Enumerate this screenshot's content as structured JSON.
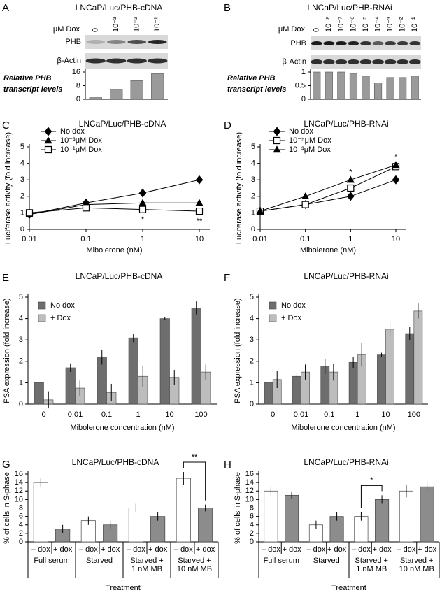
{
  "chart_data": [
    {
      "type": "blotbar",
      "panel": "A",
      "title": "LNCaP/Luc/PHB-cDNA",
      "column_header": "μM Dox",
      "categories": [
        "0",
        "10⁻³",
        "10⁻²",
        "10⁻¹"
      ],
      "blot_rows": [
        "PHB",
        "β-Actin"
      ],
      "ylabel": [
        "Relative PHB",
        "transcript levels"
      ],
      "values": [
        1,
        5.5,
        11,
        15
      ],
      "color": "#9a9a9a",
      "ylim": [
        0,
        16
      ],
      "yticks": [
        0,
        8,
        16
      ]
    },
    {
      "type": "blotbar",
      "panel": "B",
      "title": "LNCaP/Luc/PHB-RNAi",
      "column_header": "μM Dox",
      "categories": [
        "0",
        "10⁻⁸",
        "10⁻⁷",
        "10⁻⁶",
        "10⁻⁵",
        "10⁻⁴",
        "10⁻³",
        "10⁻²",
        "10⁻¹"
      ],
      "blot_rows": [
        "PHB",
        "β-Actin"
      ],
      "ylabel": [
        "Relative PHB",
        "transcript levels"
      ],
      "values": [
        1,
        1,
        1,
        0.95,
        0.85,
        0.6,
        0.8,
        0.8,
        0.85
      ],
      "color": "#9a9a9a",
      "ylim": [
        0,
        1
      ],
      "yticks": [
        0,
        0.5,
        1
      ]
    },
    {
      "type": "line",
      "panel": "C",
      "title": "LNCaP/Luc/PHB-cDNA",
      "xlabel": "Mibolerone (nM)",
      "ylabel": "Luciferase activity (fold increase)",
      "x": [
        0.01,
        0.1,
        1,
        10
      ],
      "xscale": "log",
      "xlim": [
        0.01,
        10
      ],
      "xticks": [
        0.01,
        0.1,
        1,
        10
      ],
      "ylim": [
        0,
        5
      ],
      "yticks": [
        0,
        1,
        2,
        3,
        4,
        5
      ],
      "series": [
        {
          "name": "No dox",
          "marker": "diamond",
          "color": "#000000",
          "fill": "#000000",
          "values": [
            0.9,
            1.6,
            2.2,
            3.0
          ],
          "errors": [
            0.1,
            0.1,
            0.25,
            0.25
          ]
        },
        {
          "name": "10⁻³μM Dox",
          "marker": "triangle",
          "color": "#000000",
          "fill": "#000000",
          "values": [
            0.9,
            1.5,
            1.6,
            1.6
          ],
          "errors": [
            0.1,
            0.1,
            0.15,
            0.1
          ]
        },
        {
          "name": "10⁻¹μM Dox",
          "marker": "square",
          "color": "#000000",
          "fill": "#ffffff",
          "values": [
            1.0,
            1.3,
            1.2,
            1.1
          ],
          "errors": [
            0.1,
            0.15,
            0.1,
            0.1
          ]
        }
      ],
      "annotations": [
        {
          "text": "*",
          "x": 1
        },
        {
          "text": "**",
          "x": 10
        }
      ],
      "annotation_side": "below"
    },
    {
      "type": "line",
      "panel": "D",
      "title": "LNCaP/Luc/PHB-RNAi",
      "xlabel": "Mibolerone (nM)",
      "ylabel": "Luciferase activity (fold increase)",
      "x": [
        0.01,
        0.1,
        1,
        10
      ],
      "xscale": "log",
      "xlim": [
        0.01,
        10
      ],
      "xticks": [
        0.01,
        0.1,
        1,
        10
      ],
      "ylim": [
        0,
        5
      ],
      "yticks": [
        0,
        1,
        2,
        3,
        4,
        5
      ],
      "series": [
        {
          "name": "No dox",
          "marker": "diamond",
          "color": "#000000",
          "fill": "#000000",
          "values": [
            1.1,
            1.5,
            2.0,
            3.0
          ],
          "errors": [
            0.1,
            0.1,
            0.25,
            0.25
          ]
        },
        {
          "name": "10⁻⁵μM Dox",
          "marker": "square",
          "color": "#000000",
          "fill": "#ffffff",
          "values": [
            1.1,
            1.5,
            2.5,
            3.8
          ],
          "errors": [
            0.1,
            0.15,
            0.15,
            0.1
          ]
        },
        {
          "name": "10⁻³μM Dox",
          "marker": "triangle",
          "color": "#000000",
          "fill": "#000000",
          "values": [
            1.1,
            2.0,
            3.0,
            3.9
          ],
          "errors": [
            0.1,
            0.1,
            0.1,
            0.15
          ]
        }
      ],
      "annotations": [
        {
          "text": "*",
          "x": 1
        },
        {
          "text": "*",
          "x": 10
        }
      ],
      "annotation_side": "above"
    },
    {
      "type": "groupedbar",
      "panel": "E",
      "title": "LNCaP/Luc/PHB-cDNA",
      "xlabel": "Mibolerone concentration (nM)",
      "ylabel": "PSA expression (fold increase)",
      "categories": [
        "0",
        "0.01",
        "0.1",
        "1",
        "10",
        "100"
      ],
      "ylim": [
        0,
        5
      ],
      "yticks": [
        0,
        1,
        2,
        3,
        4,
        5
      ],
      "series": [
        {
          "name": "No dox",
          "color": "#6e6e6e",
          "values": [
            1.0,
            1.7,
            2.2,
            3.1,
            4.0,
            4.5
          ],
          "errors": [
            null,
            0.2,
            0.35,
            0.2,
            0.08,
            0.3
          ]
        },
        {
          "name": "+ Dox",
          "color": "#bdbdbd",
          "values": [
            0.2,
            0.75,
            0.55,
            1.3,
            1.25,
            1.5
          ],
          "errors": [
            0.4,
            0.35,
            0.4,
            0.5,
            0.35,
            0.35
          ]
        }
      ]
    },
    {
      "type": "groupedbar",
      "panel": "F",
      "title": "LNCaP/Luc/PHB-RNAi",
      "xlabel": "Mibolerone concentration (nM)",
      "ylabel": "PSA expression (fold increase)",
      "categories": [
        "0",
        "0.01",
        "0.1",
        "1",
        "10",
        "100"
      ],
      "ylim": [
        0,
        5
      ],
      "yticks": [
        0,
        1,
        2,
        3,
        4,
        5
      ],
      "series": [
        {
          "name": "No dox",
          "color": "#6e6e6e",
          "values": [
            1.0,
            1.3,
            1.75,
            1.95,
            2.3,
            3.3
          ],
          "errors": [
            null,
            0.15,
            0.35,
            0.25,
            0.1,
            0.3
          ]
        },
        {
          "name": "+ Dox",
          "color": "#bdbdbd",
          "values": [
            1.15,
            1.5,
            1.5,
            2.3,
            3.5,
            4.35
          ],
          "errors": [
            0.4,
            0.35,
            0.4,
            0.55,
            0.35,
            0.35
          ]
        }
      ]
    },
    {
      "type": "treatment",
      "panel": "G",
      "title": "LNCaP/Luc/PHB-cDNA",
      "xlabel": "Treatment",
      "ylabel": "% of cells in S-phase",
      "groups": [
        [
          "Full serum"
        ],
        [
          "Starved"
        ],
        [
          "Starved +",
          "1 nM MB"
        ],
        [
          "Starved +",
          "10 nM MB"
        ]
      ],
      "ylim": [
        0,
        16
      ],
      "yticks": [
        0,
        2,
        4,
        6,
        8,
        10,
        12,
        14,
        16
      ],
      "series": [
        {
          "name": "– dox",
          "color": "#ffffff",
          "values": [
            14,
            5,
            8,
            15
          ],
          "errors": [
            1,
            1,
            1,
            1.5
          ]
        },
        {
          "name": "+ dox",
          "color": "#8c8c8c",
          "values": [
            3,
            4,
            6,
            8
          ],
          "errors": [
            1,
            1,
            1,
            0.8
          ]
        }
      ],
      "significance": [
        {
          "text": "**",
          "group": 3
        }
      ]
    },
    {
      "type": "treatment",
      "panel": "H",
      "title": "LNCaP/Luc/PHB-RNAi",
      "xlabel": "Treatment",
      "ylabel": "% of cells in S-phase",
      "groups": [
        [
          "Full serum"
        ],
        [
          "Starved"
        ],
        [
          "Starved +",
          "1 nM MB"
        ],
        [
          "Starved +",
          "10 nM MB"
        ]
      ],
      "ylim": [
        0,
        16
      ],
      "yticks": [
        0,
        2,
        4,
        6,
        8,
        10,
        12,
        14,
        16
      ],
      "series": [
        {
          "name": "– dox",
          "color": "#ffffff",
          "values": [
            12,
            4,
            6,
            12
          ],
          "errors": [
            1,
            1,
            1,
            1.5
          ]
        },
        {
          "name": "+ dox",
          "color": "#8c8c8c",
          "values": [
            11,
            6,
            10,
            13
          ],
          "errors": [
            0.8,
            1,
            1,
            1
          ]
        }
      ],
      "significance": [
        {
          "text": "*",
          "group": 2
        }
      ]
    }
  ]
}
